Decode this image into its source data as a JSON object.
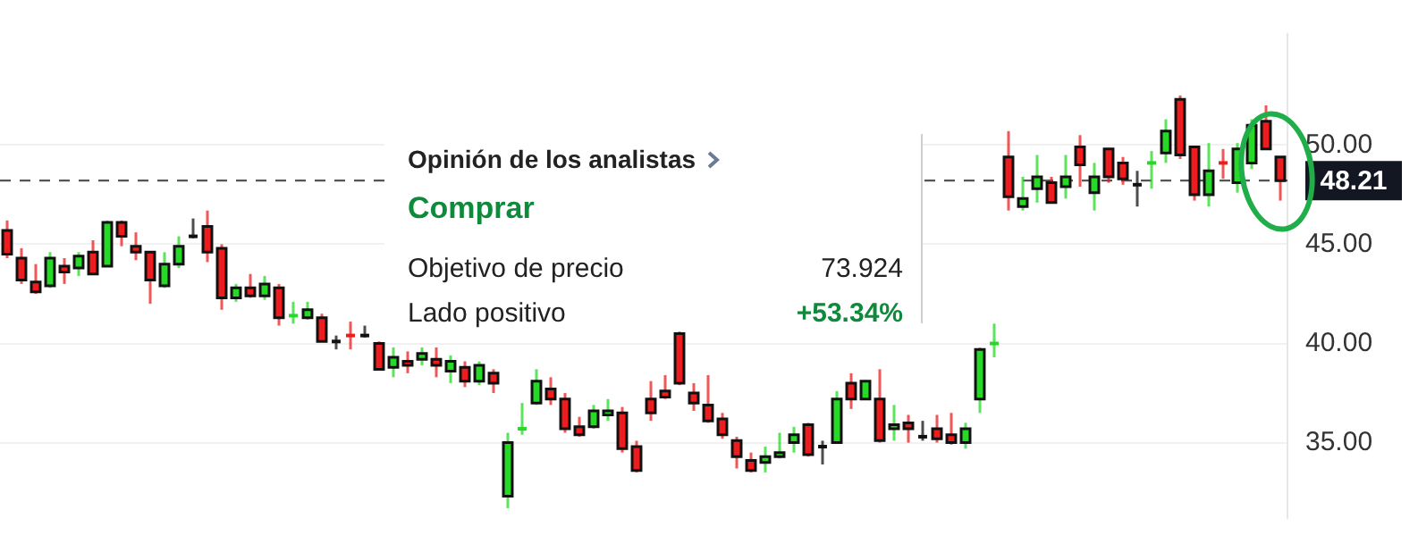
{
  "chart_data": {
    "type": "candlestick",
    "categories": [
      null,
      null,
      null,
      null,
      null,
      null,
      null,
      null,
      null,
      null,
      null,
      null,
      null,
      null,
      null,
      null,
      null,
      null,
      null,
      null,
      null,
      null,
      null,
      null,
      null,
      null,
      null,
      null,
      null,
      null,
      null,
      null,
      null,
      null,
      null,
      null,
      null,
      null,
      null,
      null,
      null,
      null,
      null,
      null,
      null,
      null,
      null,
      null,
      null,
      null,
      null,
      null,
      null,
      null,
      null,
      null,
      null,
      null,
      null,
      null,
      null,
      null,
      null,
      null,
      null,
      null,
      null,
      null,
      null,
      null,
      null,
      null,
      null,
      null,
      null,
      null,
      null,
      null,
      null,
      null,
      null,
      null,
      null,
      null,
      null,
      null,
      null,
      null,
      null,
      null
    ],
    "ohlc": [
      [
        45.7,
        46.2,
        44.3,
        44.5
      ],
      [
        44.3,
        44.8,
        43.0,
        43.2
      ],
      [
        43.1,
        44.0,
        42.5,
        42.6
      ],
      [
        42.9,
        44.6,
        42.8,
        44.3
      ],
      [
        43.9,
        44.3,
        43.0,
        43.6
      ],
      [
        43.8,
        44.6,
        43.4,
        44.4
      ],
      [
        44.6,
        45.2,
        43.5,
        43.5
      ],
      [
        43.9,
        46.2,
        43.9,
        46.1
      ],
      [
        46.1,
        46.2,
        44.9,
        45.4
      ],
      [
        44.9,
        45.6,
        44.2,
        44.6
      ],
      [
        44.6,
        44.6,
        42.0,
        43.2
      ],
      [
        42.9,
        44.6,
        42.8,
        44.0
      ],
      [
        44.0,
        45.4,
        43.8,
        44.9
      ],
      [
        45.4,
        46.3,
        45.3,
        45.4
      ],
      [
        45.9,
        46.7,
        44.1,
        44.6
      ],
      [
        44.8,
        45.0,
        41.7,
        42.3
      ],
      [
        42.3,
        43.0,
        42.1,
        42.8
      ],
      [
        42.8,
        43.5,
        42.3,
        42.4
      ],
      [
        42.4,
        43.4,
        42.2,
        43.0
      ],
      [
        42.8,
        43.0,
        40.9,
        41.3
      ],
      [
        41.3,
        42.1,
        41.0,
        41.4
      ],
      [
        41.3,
        42.1,
        41.2,
        41.7
      ],
      [
        41.3,
        41.5,
        40.1,
        40.1
      ],
      [
        40.1,
        40.4,
        39.7,
        40.1
      ],
      [
        40.4,
        41.1,
        39.7,
        40.3
      ],
      [
        40.4,
        40.9,
        40.3,
        40.4
      ],
      [
        40.0,
        40.1,
        38.7,
        38.7
      ],
      [
        38.8,
        39.8,
        38.3,
        39.3
      ],
      [
        39.1,
        39.6,
        38.5,
        38.9
      ],
      [
        39.2,
        39.8,
        38.9,
        39.5
      ],
      [
        39.2,
        39.8,
        38.3,
        38.9
      ],
      [
        38.6,
        39.4,
        38.0,
        39.1
      ],
      [
        38.8,
        39.1,
        37.8,
        38.1
      ],
      [
        38.1,
        39.1,
        37.9,
        38.9
      ],
      [
        38.5,
        38.7,
        37.5,
        38.0
      ],
      [
        32.3,
        35.5,
        31.7,
        35.0
      ],
      [
        35.6,
        37.0,
        35.4,
        35.7
      ],
      [
        37.0,
        38.7,
        36.9,
        38.1
      ],
      [
        37.7,
        38.3,
        36.9,
        37.2
      ],
      [
        37.2,
        37.5,
        35.5,
        35.7
      ],
      [
        35.8,
        36.3,
        35.3,
        35.4
      ],
      [
        35.8,
        36.9,
        35.7,
        36.6
      ],
      [
        36.4,
        37.2,
        36.1,
        36.6
      ],
      [
        36.5,
        36.8,
        34.5,
        34.7
      ],
      [
        34.8,
        35.1,
        33.5,
        33.6
      ],
      [
        37.2,
        38.1,
        36.1,
        36.5
      ],
      [
        37.6,
        38.4,
        37.2,
        37.3
      ],
      [
        40.5,
        40.6,
        37.9,
        38.0
      ],
      [
        37.5,
        38.0,
        36.6,
        37.0
      ],
      [
        36.9,
        38.4,
        36.0,
        36.1
      ],
      [
        36.2,
        36.5,
        35.2,
        35.4
      ],
      [
        35.1,
        35.3,
        33.7,
        34.3
      ],
      [
        34.1,
        34.5,
        33.5,
        33.6
      ],
      [
        34.0,
        34.8,
        33.5,
        34.3
      ],
      [
        34.3,
        35.5,
        34.2,
        34.5
      ],
      [
        35.0,
        35.8,
        34.5,
        35.4
      ],
      [
        35.9,
        36.0,
        34.3,
        34.4
      ],
      [
        34.8,
        35.1,
        33.9,
        34.8
      ],
      [
        35.0,
        37.6,
        35.0,
        37.2
      ],
      [
        38.0,
        38.5,
        36.7,
        37.2
      ],
      [
        37.2,
        38.1,
        37.2,
        38.1
      ],
      [
        37.2,
        38.7,
        35.0,
        35.1
      ],
      [
        35.7,
        36.9,
        35.1,
        35.9
      ],
      [
        36.0,
        36.4,
        35.0,
        35.7
      ],
      [
        35.3,
        36.1,
        35.1,
        35.3
      ],
      [
        35.7,
        36.4,
        35.0,
        35.2
      ],
      [
        35.4,
        36.5,
        34.9,
        35.0
      ],
      [
        35.0,
        36.0,
        34.7,
        35.7
      ],
      [
        37.2,
        39.8,
        36.5,
        39.7
      ],
      [
        39.9,
        41.0,
        39.3,
        40.0
      ],
      [
        49.4,
        50.7,
        46.7,
        47.4
      ],
      [
        46.9,
        48.4,
        46.7,
        47.3
      ],
      [
        47.8,
        49.5,
        47.1,
        48.4
      ],
      [
        48.1,
        48.4,
        47.1,
        47.1
      ],
      [
        47.9,
        49.5,
        47.3,
        48.4
      ],
      [
        49.9,
        50.5,
        47.9,
        49.0
      ],
      [
        47.6,
        49.1,
        46.7,
        48.4
      ],
      [
        49.8,
        49.8,
        48.1,
        48.4
      ],
      [
        49.1,
        49.4,
        48.0,
        48.3
      ],
      [
        48.0,
        48.7,
        46.9,
        48.0
      ],
      [
        49.0,
        49.7,
        47.8,
        49.1
      ],
      [
        49.6,
        51.3,
        49.1,
        50.7
      ],
      [
        52.3,
        52.5,
        49.3,
        49.5
      ],
      [
        49.9,
        49.9,
        47.2,
        47.5
      ],
      [
        47.5,
        50.1,
        46.9,
        48.7
      ],
      [
        49.1,
        49.8,
        48.3,
        49.0
      ],
      [
        48.1,
        50.1,
        47.6,
        49.8
      ],
      [
        49.1,
        51.3,
        48.8,
        51.0
      ],
      [
        51.2,
        52.0,
        49.8,
        49.8
      ],
      [
        49.4,
        49.4,
        47.2,
        48.21
      ]
    ],
    "colors": [
      "#ee1c1c",
      "#ee1c1c",
      "#ee1c1c",
      "#26d926",
      "#ee1c1c",
      "#26d926",
      "#ee1c1c",
      "#26d926",
      "#ee1c1c",
      "#ee1c1c",
      "#ee1c1c",
      "#26d926",
      "#26d926",
      "#111111",
      "#ee1c1c",
      "#ee1c1c",
      "#26d926",
      "#ee1c1c",
      "#26d926",
      "#ee1c1c",
      "#26d926",
      "#26d926",
      "#ee1c1c",
      "#111111",
      "#ee1c1c",
      "#111111",
      "#ee1c1c",
      "#26d926",
      "#ee1c1c",
      "#26d926",
      "#ee1c1c",
      "#26d926",
      "#ee1c1c",
      "#26d926",
      "#ee1c1c",
      "#26d926",
      "#26d926",
      "#26d926",
      "#ee1c1c",
      "#ee1c1c",
      "#ee1c1c",
      "#26d926",
      "#26d926",
      "#ee1c1c",
      "#ee1c1c",
      "#ee1c1c",
      "#ee1c1c",
      "#ee1c1c",
      "#ee1c1c",
      "#ee1c1c",
      "#ee1c1c",
      "#ee1c1c",
      "#ee1c1c",
      "#26d926",
      "#26d926",
      "#26d926",
      "#ee1c1c",
      "#111111",
      "#26d926",
      "#ee1c1c",
      "#26d926",
      "#ee1c1c",
      "#26d926",
      "#ee1c1c",
      "#111111",
      "#ee1c1c",
      "#ee1c1c",
      "#26d926",
      "#26d926",
      "#26d926",
      "#ee1c1c",
      "#26d926",
      "#26d926",
      "#ee1c1c",
      "#26d926",
      "#ee1c1c",
      "#26d926",
      "#ee1c1c",
      "#ee1c1c",
      "#111111",
      "#26d926",
      "#26d926",
      "#ee1c1c",
      "#ee1c1c",
      "#26d926",
      "#ee1c1c",
      "#26d926",
      "#26d926",
      "#ee1c1c",
      "#ee1c1c"
    ],
    "ylim": [
      31.2,
      55.6
    ],
    "yticks": [
      {
        "value": 35,
        "label": "35.00"
      },
      {
        "value": 40,
        "label": "40.00"
      },
      {
        "value": 45,
        "label": "45.00"
      },
      {
        "value": 50,
        "label": "50.00"
      }
    ],
    "grid": "y",
    "tick_labels": "y",
    "ref_lines": [
      {
        "axis": "y",
        "value": 48.21,
        "label": "48.21",
        "color": "#555555",
        "line_style": "dashed"
      }
    ],
    "annotations": [
      "Opinión de los analistas",
      "Comprar",
      "Objetivo de precio",
      "73.924",
      "Lado positivo",
      "+53.34%"
    ]
  }
}
